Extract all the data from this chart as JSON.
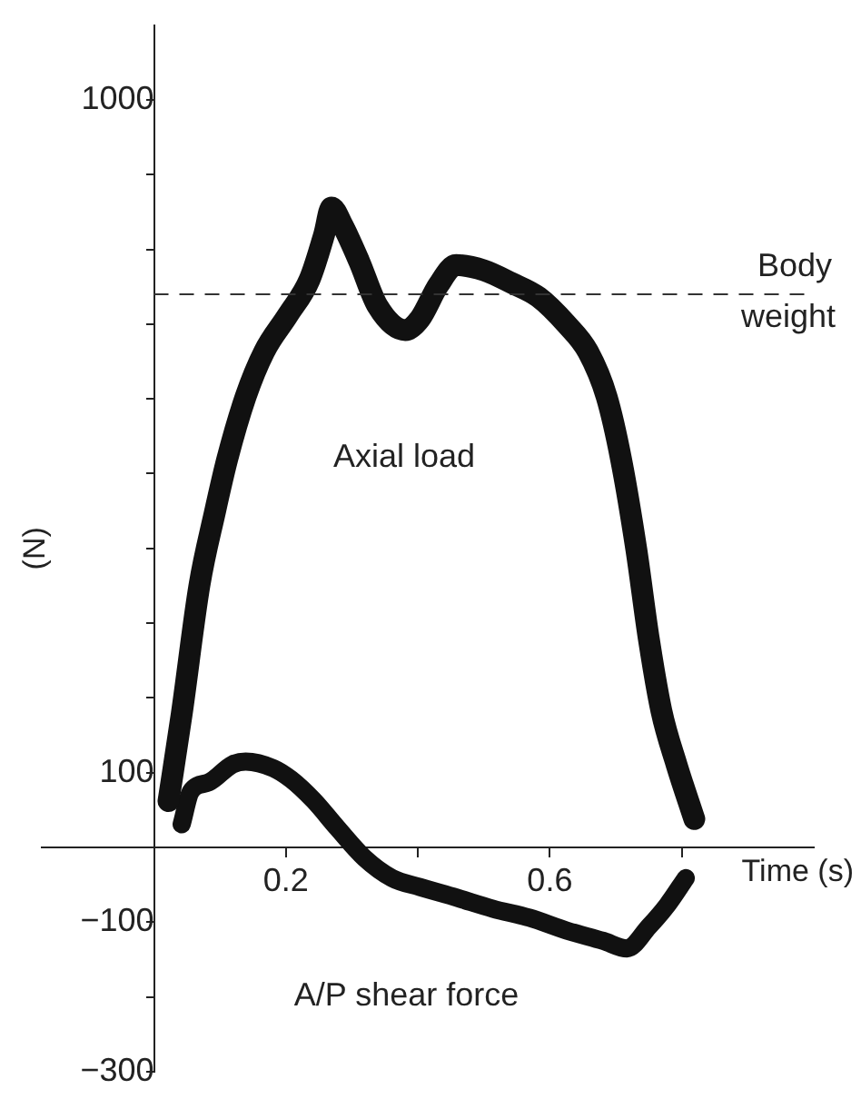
{
  "chart_data": {
    "type": "line",
    "xlabel": "Time (s)",
    "ylabel": "(N)",
    "xlim": [
      -0.17,
      1.0
    ],
    "ylim": [
      -300,
      1100
    ],
    "xticks": [
      {
        "value": 0.2,
        "label": "0.2"
      },
      {
        "value": 0.4,
        "label": null
      },
      {
        "value": 0.6,
        "label": "0.6"
      },
      {
        "value": 0.8,
        "label": null
      }
    ],
    "yticks": [
      -300,
      {
        "value": -200,
        "label": null
      },
      -100,
      {
        "value": 0,
        "label": null
      },
      100,
      {
        "value": 200,
        "label": null
      },
      {
        "value": 300,
        "label": null
      },
      {
        "value": 400,
        "label": null
      },
      {
        "value": 500,
        "label": null
      },
      {
        "value": 600,
        "label": null
      },
      {
        "value": 700,
        "label": null
      },
      {
        "value": 800,
        "label": null
      },
      {
        "value": 900,
        "label": null
      },
      1000
    ],
    "series": [
      {
        "name": "Axial load",
        "color": "#111111",
        "x": [
          0.022,
          0.042,
          0.069,
          0.092,
          0.111,
          0.139,
          0.167,
          0.203,
          0.236,
          0.258,
          0.269,
          0.286,
          0.311,
          0.339,
          0.381,
          0.403,
          0.431,
          0.458,
          0.5,
          0.542,
          0.583,
          0.625,
          0.658,
          0.686,
          0.708,
          0.731,
          0.75,
          0.769,
          0.792,
          0.819
        ],
        "values": [
          62,
          178,
          351,
          447,
          519,
          603,
          663,
          712,
          760,
          820,
          856,
          832,
          784,
          724,
          692,
          707,
          752,
          779,
          772,
          755,
          736,
          700,
          663,
          603,
          519,
          399,
          279,
          183,
          111,
          38
        ]
      },
      {
        "name": "A/P shear force",
        "color": "#111111",
        "x": [
          0.042,
          0.056,
          0.083,
          0.119,
          0.139,
          0.181,
          0.208,
          0.242,
          0.278,
          0.319,
          0.361,
          0.403,
          0.458,
          0.514,
          0.569,
          0.625,
          0.681,
          0.717,
          0.75,
          0.778,
          0.806
        ],
        "values": [
          31,
          75,
          87,
          111,
          115,
          106,
          91,
          63,
          26,
          -14,
          -41,
          -53,
          -67,
          -82,
          -94,
          -111,
          -125,
          -135,
          -106,
          -77,
          -41
        ]
      }
    ],
    "ref_lines": [
      {
        "axis": "y",
        "value": 740,
        "label": "Body weight",
        "line_style": "dashed",
        "color": "#333333"
      }
    ],
    "grid": false,
    "legend": false,
    "marker": "none"
  }
}
